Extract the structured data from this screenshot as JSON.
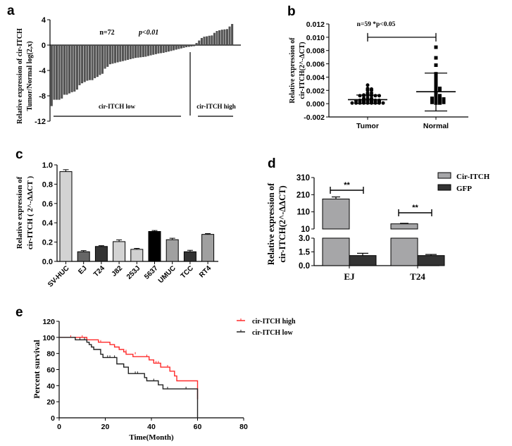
{
  "chart_data": [
    {
      "id": "a",
      "panel_label": "a",
      "type": "bar",
      "title": "",
      "annotation": {
        "n": "n=72",
        "p": "p<0.01"
      },
      "ylabel_lines": [
        "Relative expression of cir-ITCH",
        "Tumor/Normal  log(2,x)"
      ],
      "xlabel": "",
      "ylim": [
        -12,
        4
      ],
      "yticks": [
        4,
        0,
        -4,
        -8,
        -12
      ],
      "groups": [
        {
          "label": "cir-ITCH  low"
        },
        {
          "label": "cir-ITCH  high"
        }
      ],
      "bar_color": "#555555",
      "values": [
        -9.6,
        -8.6,
        -8.6,
        -8.6,
        -8.4,
        -7.8,
        -7.8,
        -7.6,
        -7.4,
        -7.3,
        -7.0,
        -6.3,
        -6.0,
        -5.8,
        -5.6,
        -5.5,
        -5.5,
        -5.2,
        -5.0,
        -4.7,
        -4.5,
        -3.7,
        -3.4,
        -3.0,
        -2.9,
        -2.8,
        -2.7,
        -2.6,
        -2.5,
        -2.4,
        -2.3,
        -2.2,
        -2.1,
        -2.0,
        -1.95,
        -1.9,
        -1.85,
        -1.8,
        -1.7,
        -1.6,
        -1.5,
        -1.4,
        -1.3,
        -1.25,
        -1.2,
        -1.1,
        -1.0,
        -0.9,
        -0.8,
        -0.7,
        -0.6,
        -0.5,
        -0.4,
        -0.3,
        -0.25,
        -0.2,
        -0.15,
        0.3,
        0.7,
        1.1,
        1.3,
        1.35,
        1.45,
        1.5,
        1.9,
        2.2,
        2.3,
        2.4,
        2.45,
        2.5,
        2.9,
        3.3
      ]
    },
    {
      "id": "b",
      "panel_label": "b",
      "type": "scatter",
      "title": "",
      "annotation": "n=59   *p<0.05",
      "ylabel_lines": [
        "Relative expression of",
        "cir-ITCH(2^-ΔCT)"
      ],
      "xlabel": "",
      "categories": [
        "Tumor",
        "Normal"
      ],
      "ylim": [
        -0.002,
        0.012
      ],
      "yticks": [
        "0.012",
        "0.010",
        "0.008",
        "0.006",
        "0.004",
        "0.002",
        "0.000",
        "-0.002"
      ],
      "series": [
        {
          "name": "Tumor",
          "marker": "circle",
          "mean": 0.0006,
          "sd_upper": 0.0013,
          "sd_lower": 0.0,
          "values": [
            0.0028,
            0.0023,
            0.0022,
            0.0021,
            0.002,
            0.002,
            0.0022,
            0.0016,
            0.0016,
            0.0013,
            0.0013,
            0.0013,
            0.0012,
            0.0012,
            0.0012,
            0.0012,
            0.0012,
            0.0012,
            0.0014,
            0.0008,
            0.0008,
            0.0008,
            0.0006,
            0.0006,
            0.0006,
            0.0005,
            0.0005,
            0.0005,
            0.0005,
            0.0005,
            0.0005,
            0.0004,
            0.0004,
            0.0004,
            0.0004,
            0.0004,
            0.0004,
            0.0004,
            0.0003,
            0.0003,
            0.0003,
            0.0003,
            0.0003,
            0.0003,
            0.0002,
            0.0002,
            0.0002,
            0.0002,
            0.0002,
            0.0002,
            0.0001,
            0.0001,
            0.0001,
            0.0001,
            0.0001,
            0.0001,
            0.0001,
            0.0001,
            0.0001
          ]
        },
        {
          "name": "Normal",
          "marker": "square",
          "mean": 0.0018,
          "sd_upper": 0.0046,
          "sd_lower": -0.0011,
          "values": [
            0.0085,
            0.0069,
            0.0058,
            0.0045,
            0.004,
            0.0037,
            0.0032,
            0.0028,
            0.0026,
            0.0025,
            0.0023,
            0.0023,
            0.0022,
            0.0022,
            0.0021,
            0.0021,
            0.002,
            0.002,
            0.0019,
            0.0018,
            0.0016,
            0.0015,
            0.0014,
            0.0013,
            0.0012,
            0.0012,
            0.0011,
            0.001,
            0.001,
            0.0009,
            0.0009,
            0.0008,
            0.0008,
            0.0008,
            0.0007,
            0.0007,
            0.0007,
            0.0007,
            0.0006,
            0.0006,
            0.0006,
            0.0005,
            0.0005,
            0.0005,
            0.0005,
            0.0004,
            0.0004,
            0.0004,
            0.0004,
            0.0003,
            0.0003,
            0.0003,
            0.0003,
            0.0002,
            0.0002,
            0.0002,
            0.0002,
            0.0001,
            0.0001
          ]
        }
      ]
    },
    {
      "id": "c",
      "panel_label": "c",
      "type": "bar",
      "title": "",
      "ylabel_lines": [
        "Relative expression of",
        "cir-ITCH ( 2^-ΔΔCT )"
      ],
      "xlabel": "",
      "ylim": [
        0,
        1.0
      ],
      "yticks": [
        "1.0",
        "0.8",
        "0.6",
        "0.4",
        "0.2",
        "0.0"
      ],
      "categories": [
        "SV-HUC",
        "EJ",
        "T24",
        "J82",
        "253J",
        "5637",
        "UMUC",
        "TCC",
        "RT4"
      ],
      "values": [
        0.93,
        0.1,
        0.155,
        0.205,
        0.125,
        0.31,
        0.225,
        0.1,
        0.28
      ],
      "errors": [
        0.02,
        0.012,
        0.008,
        0.018,
        0.01,
        0.01,
        0.015,
        0.015,
        0.008
      ],
      "colors": [
        "#d3d3d3",
        "#666666",
        "#333333",
        "#d3d3d3",
        "#d0d0d0",
        "#000000",
        "#a0a0a0",
        "#333333",
        "#a0a0a0"
      ]
    },
    {
      "id": "d",
      "panel_label": "d",
      "type": "bar",
      "title": "",
      "ylabel_lines": [
        "Relative expression of",
        "cir-ITCH(2^-ΔΔCT)"
      ],
      "xlabel": "",
      "categories": [
        "EJ",
        "T24"
      ],
      "broken_axis": {
        "lower": [
          0,
          3.0
        ],
        "upper": [
          10,
          310
        ]
      },
      "yticks_upper": [
        "310",
        "210",
        "110",
        "10"
      ],
      "yticks_lower": [
        "3.0",
        "1.5",
        "0.0"
      ],
      "legend_position": "top-right",
      "series": [
        {
          "name": "Cir-ITCH",
          "color": "#a6a6a8",
          "values": [
            185,
            40
          ],
          "errors": [
            12,
            3
          ]
        },
        {
          "name": "GFP",
          "color": "#333333",
          "values": [
            1.1,
            1.1
          ],
          "errors": [
            0.25,
            0.12
          ]
        }
      ],
      "significance": [
        "**",
        "**"
      ]
    },
    {
      "id": "e",
      "panel_label": "e",
      "type": "line",
      "title": "",
      "xlabel": "Time(Month)",
      "ylabel": "Percent survival",
      "xlim": [
        0,
        80
      ],
      "ylim": [
        0,
        120
      ],
      "xticks": [
        "0",
        "20",
        "40",
        "60",
        "80"
      ],
      "yticks": [
        "120",
        "100",
        "80",
        "60",
        "40",
        "20",
        "0"
      ],
      "legend_position": "top-right",
      "series": [
        {
          "name": "cir-ITCH high",
          "color": "#ff2a2a",
          "steps": [
            [
              0,
              100
            ],
            [
              12,
              100
            ],
            [
              12,
              97
            ],
            [
              17,
              97
            ],
            [
              17,
              94
            ],
            [
              22,
              94
            ],
            [
              22,
              91
            ],
            [
              24,
              91
            ],
            [
              24,
              88
            ],
            [
              26,
              88
            ],
            [
              26,
              85
            ],
            [
              28,
              85
            ],
            [
              28,
              82
            ],
            [
              29,
              82
            ],
            [
              29,
              79
            ],
            [
              32,
              79
            ],
            [
              32,
              76
            ],
            [
              39,
              76
            ],
            [
              39,
              72
            ],
            [
              41,
              72
            ],
            [
              41,
              68
            ],
            [
              44,
              68
            ],
            [
              44,
              63
            ],
            [
              48,
              63
            ],
            [
              48,
              58
            ],
            [
              50,
              58
            ],
            [
              50,
              52
            ],
            [
              51,
              52
            ],
            [
              51,
              46
            ],
            [
              60,
              46
            ],
            [
              60,
              23
            ]
          ],
          "censored": [
            [
              5,
              100
            ],
            [
              10,
              100
            ],
            [
              18,
              94
            ],
            [
              29,
              82
            ],
            [
              33,
              79
            ],
            [
              38,
              76
            ],
            [
              42,
              68
            ],
            [
              43,
              68
            ],
            [
              47,
              63
            ]
          ]
        },
        {
          "name": "cir-ITCH low",
          "color": "#222222",
          "steps": [
            [
              0,
              100
            ],
            [
              7,
              100
            ],
            [
              7,
              97
            ],
            [
              12,
              97
            ],
            [
              12,
              94
            ],
            [
              13,
              94
            ],
            [
              13,
              91
            ],
            [
              14,
              91
            ],
            [
              14,
              88
            ],
            [
              15,
              88
            ],
            [
              15,
              85
            ],
            [
              18,
              85
            ],
            [
              18,
              79
            ],
            [
              19,
              79
            ],
            [
              19,
              75
            ],
            [
              25,
              75
            ],
            [
              25,
              67
            ],
            [
              28,
              67
            ],
            [
              28,
              63
            ],
            [
              30,
              63
            ],
            [
              30,
              55
            ],
            [
              37,
              55
            ],
            [
              37,
              50
            ],
            [
              38,
              50
            ],
            [
              38,
              46
            ],
            [
              43,
              46
            ],
            [
              43,
              41
            ],
            [
              45,
              41
            ],
            [
              45,
              36
            ],
            [
              60,
              36
            ],
            [
              60,
              0
            ]
          ],
          "censored": [
            [
              9,
              97
            ],
            [
              11,
              97
            ],
            [
              21,
              75
            ],
            [
              22,
              75
            ],
            [
              24,
              75
            ],
            [
              33,
              55
            ],
            [
              34,
              55
            ],
            [
              41,
              46
            ],
            [
              47,
              36
            ],
            [
              55,
              36
            ]
          ]
        }
      ]
    }
  ]
}
